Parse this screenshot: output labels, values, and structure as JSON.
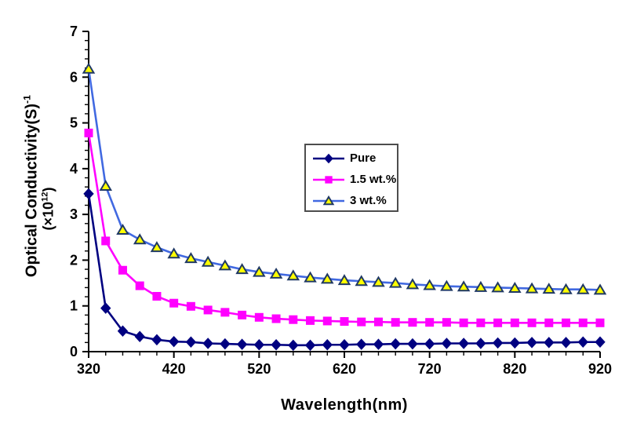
{
  "chart_data": {
    "type": "line",
    "title": "",
    "xlabel": "Wavelength(nm)",
    "ylabel": "Optical Conductivity(S)⁻¹ (×10¹²)",
    "ylabel_parts": {
      "line1_base": "Optical Conductivity(S)",
      "line1_sup": "-1",
      "line2_base": "(×10",
      "line2_sup": "12",
      "line2_close": ")"
    },
    "xlim": [
      320,
      920
    ],
    "ylim": [
      0,
      7
    ],
    "x_major_ticks": [
      320,
      420,
      520,
      620,
      720,
      820,
      920
    ],
    "x_minor_step": 20,
    "y_major_ticks": [
      0,
      1,
      2,
      3,
      4,
      5,
      6,
      7
    ],
    "y_minor_step": 0.2,
    "grid": false,
    "legend_position": "inside-upper-middle",
    "axis_color": "#000000",
    "x": [
      320,
      340,
      360,
      380,
      400,
      420,
      440,
      460,
      480,
      500,
      520,
      540,
      560,
      580,
      600,
      620,
      640,
      660,
      680,
      700,
      720,
      740,
      760,
      780,
      800,
      820,
      840,
      860,
      880,
      900,
      920
    ],
    "series": [
      {
        "name": "Pure",
        "marker": "diamond",
        "line_color": "#000080",
        "marker_fill": "#000080",
        "marker_stroke": "#000080",
        "values": [
          3.45,
          0.95,
          0.45,
          0.33,
          0.26,
          0.22,
          0.21,
          0.18,
          0.17,
          0.16,
          0.15,
          0.15,
          0.14,
          0.14,
          0.15,
          0.15,
          0.16,
          0.16,
          0.17,
          0.17,
          0.17,
          0.18,
          0.18,
          0.18,
          0.19,
          0.19,
          0.2,
          0.2,
          0.2,
          0.21,
          0.21
        ]
      },
      {
        "name": "1.5 wt.%",
        "marker": "square",
        "line_color": "#FF00FF",
        "marker_fill": "#FF00FF",
        "marker_stroke": "#FF00FF",
        "values": [
          4.78,
          2.42,
          1.78,
          1.44,
          1.21,
          1.06,
          0.99,
          0.91,
          0.86,
          0.8,
          0.75,
          0.72,
          0.7,
          0.68,
          0.67,
          0.66,
          0.65,
          0.65,
          0.64,
          0.64,
          0.64,
          0.64,
          0.63,
          0.63,
          0.63,
          0.63,
          0.63,
          0.63,
          0.63,
          0.63,
          0.63
        ]
      },
      {
        "name": "3 wt.%",
        "marker": "triangle",
        "line_color": "#4169E1",
        "marker_fill": "#FFFF00",
        "marker_stroke": "#1F3864",
        "values": [
          6.18,
          3.62,
          2.66,
          2.45,
          2.28,
          2.14,
          2.04,
          1.96,
          1.88,
          1.8,
          1.74,
          1.7,
          1.66,
          1.62,
          1.59,
          1.56,
          1.54,
          1.52,
          1.5,
          1.47,
          1.45,
          1.43,
          1.42,
          1.41,
          1.4,
          1.39,
          1.38,
          1.37,
          1.36,
          1.36,
          1.35
        ]
      }
    ]
  }
}
